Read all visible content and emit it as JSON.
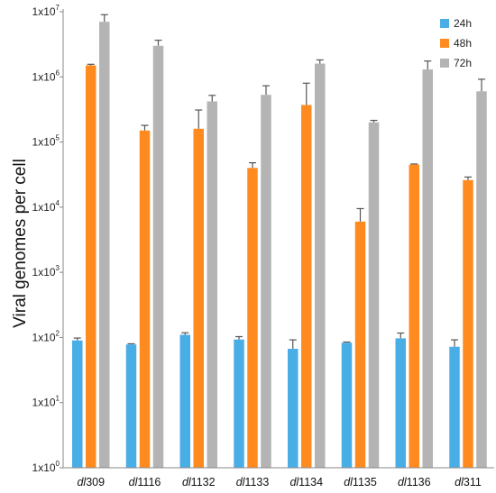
{
  "chart_data": {
    "type": "bar",
    "title": "",
    "xlabel": "",
    "ylabel": "Viral genomes per cell",
    "yscale": "log",
    "ylim": [
      1,
      10000000
    ],
    "grid": false,
    "legend_position": "top-right",
    "y_tick_labels": [
      {
        "base": "1x10",
        "exp": "0"
      },
      {
        "base": "1x10",
        "exp": "1"
      },
      {
        "base": "1x10",
        "exp": "2"
      },
      {
        "base": "1x10",
        "exp": "3"
      },
      {
        "base": "1x10",
        "exp": "4"
      },
      {
        "base": "1x10",
        "exp": "5"
      },
      {
        "base": "1x10",
        "exp": "6"
      },
      {
        "base": "1x10",
        "exp": "7"
      }
    ],
    "categories": [
      {
        "prefix": "dl",
        "suffix": "309"
      },
      {
        "prefix": "dl",
        "suffix": "1116"
      },
      {
        "prefix": "dl",
        "suffix": "1132"
      },
      {
        "prefix": "dl",
        "suffix": "1133"
      },
      {
        "prefix": "dl",
        "suffix": "1134"
      },
      {
        "prefix": "dl",
        "suffix": "1135"
      },
      {
        "prefix": "dl",
        "suffix": "1136"
      },
      {
        "prefix": "dl",
        "suffix": "311"
      }
    ],
    "series": [
      {
        "name": "24h",
        "color": "#4aaee6",
        "values": [
          90,
          78,
          110,
          93,
          67,
          83,
          97,
          72
        ],
        "errors": [
          8,
          2,
          8,
          10,
          25,
          2,
          20,
          20
        ]
      },
      {
        "name": "48h",
        "color": "#ff8a1f",
        "values": [
          1500000,
          150000,
          160000,
          40000,
          370000,
          6000,
          45000,
          26000
        ],
        "errors": [
          60000,
          30000,
          150000,
          8000,
          430000,
          3500,
          1000,
          3000
        ]
      },
      {
        "name": "72h",
        "color": "#b4b4b4",
        "values": [
          7000000,
          3000000,
          420000,
          530000,
          1600000,
          200000,
          1300000,
          600000
        ],
        "errors": [
          2000000,
          650000,
          100000,
          200000,
          220000,
          15000,
          450000,
          320000
        ]
      }
    ]
  }
}
